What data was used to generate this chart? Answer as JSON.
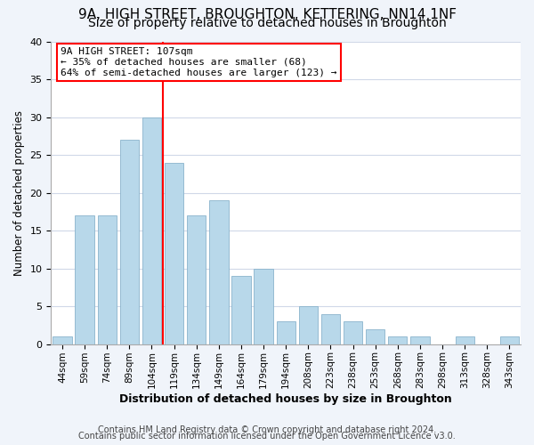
{
  "title": "9A, HIGH STREET, BROUGHTON, KETTERING, NN14 1NF",
  "subtitle": "Size of property relative to detached houses in Broughton",
  "xlabel": "Distribution of detached houses by size in Broughton",
  "ylabel": "Number of detached properties",
  "bar_labels": [
    "44sqm",
    "59sqm",
    "74sqm",
    "89sqm",
    "104sqm",
    "119sqm",
    "134sqm",
    "149sqm",
    "164sqm",
    "179sqm",
    "194sqm",
    "208sqm",
    "223sqm",
    "238sqm",
    "253sqm",
    "268sqm",
    "283sqm",
    "298sqm",
    "313sqm",
    "328sqm",
    "343sqm"
  ],
  "bar_values": [
    1,
    17,
    17,
    27,
    30,
    24,
    17,
    19,
    9,
    10,
    3,
    5,
    4,
    3,
    2,
    1,
    1,
    0,
    1,
    0,
    1
  ],
  "bar_color": "#b8d8ea",
  "bar_edge_color": "#8ab4cc",
  "vline_x": 4.5,
  "vline_color": "red",
  "ylim": [
    0,
    40
  ],
  "yticks": [
    0,
    5,
    10,
    15,
    20,
    25,
    30,
    35,
    40
  ],
  "annotation_title": "9A HIGH STREET: 107sqm",
  "annotation_line1": "← 35% of detached houses are smaller (68)",
  "annotation_line2": "64% of semi-detached houses are larger (123) →",
  "footnote1": "Contains HM Land Registry data © Crown copyright and database right 2024.",
  "footnote2": "Contains public sector information licensed under the Open Government Licence v3.0.",
  "bg_color": "#f0f4fa",
  "plot_bg_color": "#ffffff",
  "grid_color": "#d0d8e8",
  "title_fontsize": 11,
  "subtitle_fontsize": 10,
  "xlabel_fontsize": 9,
  "ylabel_fontsize": 8.5,
  "footnote_fontsize": 7,
  "tick_fontsize": 7.5,
  "ytick_fontsize": 8
}
